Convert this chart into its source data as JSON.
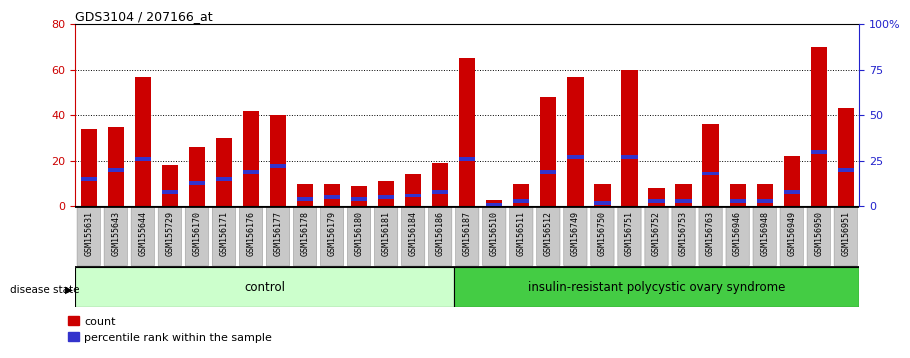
{
  "title": "GDS3104 / 207166_at",
  "samples": [
    "GSM155631",
    "GSM155643",
    "GSM155644",
    "GSM155729",
    "GSM156170",
    "GSM156171",
    "GSM156176",
    "GSM156177",
    "GSM156178",
    "GSM156179",
    "GSM156180",
    "GSM156181",
    "GSM156184",
    "GSM156186",
    "GSM156187",
    "GSM156510",
    "GSM156511",
    "GSM156512",
    "GSM156749",
    "GSM156750",
    "GSM156751",
    "GSM156752",
    "GSM156753",
    "GSM156763",
    "GSM156946",
    "GSM156948",
    "GSM156949",
    "GSM156950",
    "GSM156951"
  ],
  "counts": [
    34,
    35,
    57,
    18,
    26,
    30,
    42,
    40,
    10,
    10,
    9,
    11,
    14,
    19,
    65,
    3,
    10,
    48,
    57,
    10,
    60,
    8,
    10,
    36,
    10,
    10,
    22,
    70,
    43
  ],
  "percentiles": [
    15,
    20,
    26,
    8,
    13,
    15,
    19,
    22,
    4,
    5,
    4,
    5,
    6,
    8,
    26,
    1,
    3,
    19,
    27,
    2,
    27,
    3,
    3,
    18,
    3,
    3,
    8,
    30,
    20
  ],
  "control_count": 14,
  "disease_label": "insulin-resistant polycystic ovary syndrome",
  "control_label": "control",
  "disease_state_label": "disease state",
  "bar_color": "#cc0000",
  "percentile_color": "#3333cc",
  "bar_width": 0.6,
  "ylim_left": [
    0,
    80
  ],
  "ylim_right": [
    0,
    100
  ],
  "yticks_left": [
    0,
    20,
    40,
    60,
    80
  ],
  "yticks_right": [
    0,
    25,
    50,
    75,
    100
  ],
  "yticklabels_right": [
    "0",
    "25",
    "50",
    "75",
    "100%"
  ],
  "bg_xlabel": "#c8c8c8",
  "bg_control": "#ccffcc",
  "bg_disease": "#44cc44",
  "legend_count_label": "count",
  "legend_percentile_label": "percentile rank within the sample",
  "left_axis_color": "#cc0000",
  "right_axis_color": "#2222cc"
}
